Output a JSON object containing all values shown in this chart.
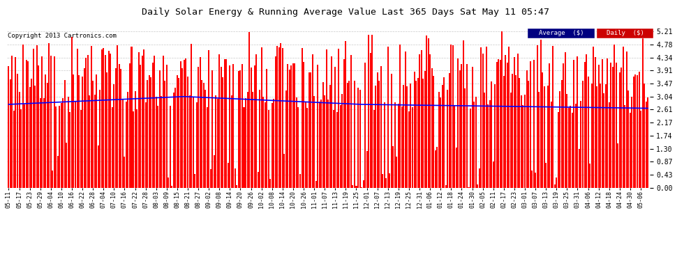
{
  "title": "Daily Solar Energy & Running Average Value Last 365 Days Sat May 11 05:47",
  "copyright": "Copyright 2013 Cartronics.com",
  "bar_color": "#ff0000",
  "avg_line_color": "#0000ff",
  "background_color": "#ffffff",
  "grid_color": "#bbbbbb",
  "ylim": [
    0.0,
    5.21
  ],
  "yticks": [
    0.0,
    0.43,
    0.87,
    1.3,
    1.74,
    2.17,
    2.61,
    3.04,
    3.47,
    3.91,
    4.34,
    4.78,
    5.21
  ],
  "legend_avg_bg": "#000080",
  "legend_daily_bg": "#cc0000",
  "legend_avg_text": "Average  ($)",
  "legend_daily_text": "Daily  ($)",
  "n_bars": 365,
  "x_tick_labels": [
    "05-11",
    "05-17",
    "05-23",
    "05-29",
    "06-04",
    "06-10",
    "06-16",
    "06-22",
    "06-28",
    "07-04",
    "07-10",
    "07-16",
    "07-22",
    "07-28",
    "08-03",
    "08-09",
    "08-15",
    "08-21",
    "08-27",
    "09-02",
    "09-08",
    "09-14",
    "09-20",
    "09-26",
    "10-02",
    "10-08",
    "10-14",
    "10-20",
    "10-26",
    "11-01",
    "11-07",
    "11-13",
    "11-19",
    "11-25",
    "12-01",
    "12-07",
    "12-13",
    "12-19",
    "12-25",
    "12-31",
    "01-06",
    "01-12",
    "01-18",
    "01-24",
    "01-30",
    "02-05",
    "02-11",
    "02-17",
    "02-23",
    "03-01",
    "03-07",
    "03-13",
    "03-19",
    "03-25",
    "03-31",
    "04-06",
    "04-12",
    "04-18",
    "04-24",
    "04-30",
    "05-06"
  ]
}
